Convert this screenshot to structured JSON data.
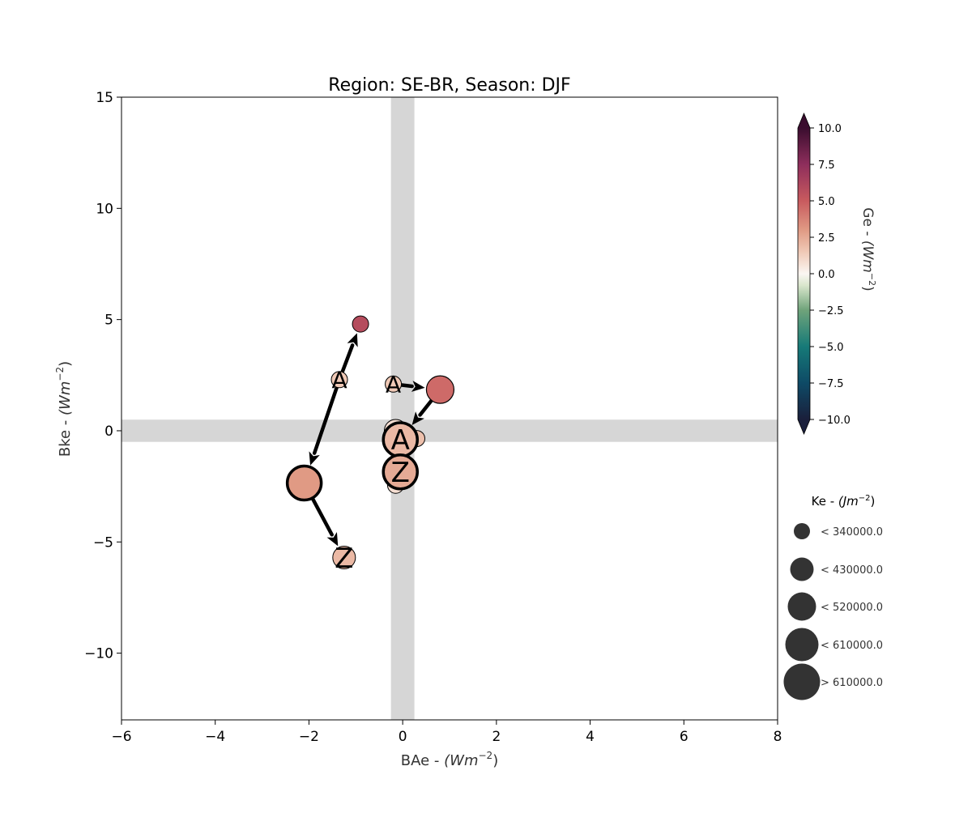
{
  "chart_data": {
    "type": "scatter",
    "title": "Region: SE-BR, Season: DJF",
    "xlabel": "BAe - ",
    "xlabel_unit": "(Wm",
    "xlabel_exp": "−2",
    "xlabel_close": ")",
    "ylabel": "Bke - ",
    "ylabel_unit": "(Wm",
    "ylabel_exp": "−2",
    "ylabel_close": ")",
    "xlim": [
      -6,
      8
    ],
    "ylim": [
      -13,
      15
    ],
    "xticks": [
      -6,
      -4,
      -2,
      0,
      2,
      4,
      6,
      8
    ],
    "xtick_labels": [
      "−6",
      "−4",
      "−2",
      "0",
      "2",
      "4",
      "6",
      "8"
    ],
    "yticks": [
      -10,
      -5,
      0,
      5,
      10,
      15
    ],
    "ytick_labels": [
      "−10",
      "−5",
      "0",
      "5",
      "10",
      "15"
    ],
    "grid": false,
    "reference_bands": {
      "x_center": 0,
      "y_center": 0,
      "x_half_width": 0.25,
      "y_half_width": 0.5,
      "color": "#d6d6d6"
    },
    "trajectories": [
      {
        "points": [
          {
            "x": -1.35,
            "y": 2.3,
            "ge": 1.5,
            "ke_class": 0,
            "label": "A"
          },
          {
            "x": -0.9,
            "y": 4.8,
            "ge": 5.8,
            "ke_class": 0,
            "label": ""
          },
          {
            "x": -2.1,
            "y": -2.35,
            "ge": 3.0,
            "ke_class": 3,
            "label": ""
          },
          {
            "x": -1.25,
            "y": -5.7,
            "ge": 2.0,
            "ke_class": 1,
            "label": "Z"
          }
        ],
        "arrows": [
          [
            0,
            1
          ],
          [
            0,
            2
          ],
          [
            2,
            3
          ]
        ]
      },
      {
        "points": [
          {
            "x": -0.2,
            "y": 2.1,
            "ge": 1.5,
            "ke_class": 0,
            "label": "A"
          },
          {
            "x": 0.8,
            "y": 1.85,
            "ge": 4.5,
            "ke_class": 2,
            "label": ""
          },
          {
            "x": 0.3,
            "y": -0.35,
            "ge": 1.8,
            "ke_class": 0,
            "label": ""
          },
          {
            "x": -0.15,
            "y": 0.0,
            "ge": 0.8,
            "ke_class": 1,
            "label": ""
          },
          {
            "x": -0.15,
            "y": -2.45,
            "ge": 0.8,
            "ke_class": 0,
            "label": ""
          },
          {
            "x": -0.05,
            "y": -0.4,
            "ge": 2.0,
            "ke_class": 3,
            "label": "A"
          },
          {
            "x": -0.05,
            "y": -1.85,
            "ge": 2.5,
            "ke_class": 3,
            "label": "Z"
          }
        ],
        "arrows": [
          [
            0,
            1
          ],
          [
            1,
            5
          ]
        ]
      }
    ],
    "colorbar": {
      "label": "Ge - ",
      "label_unit": "(Wm",
      "label_exp": "−2",
      "label_close": ")",
      "range": [
        -10,
        10
      ],
      "ticks": [
        10.0,
        7.5,
        5.0,
        2.5,
        0.0,
        -2.5,
        -5.0,
        -7.5,
        -10.0
      ],
      "tick_labels": [
        "10.0",
        "7.5",
        "5.0",
        "2.5",
        "0.0",
        "−2.5",
        "−5.0",
        "−7.5",
        "−10.0"
      ],
      "extend": "both",
      "stops": [
        {
          "v": -10,
          "color": "#1a1f3b"
        },
        {
          "v": -7.5,
          "color": "#0e4a66"
        },
        {
          "v": -5,
          "color": "#167a78"
        },
        {
          "v": -2.5,
          "color": "#6fa37a"
        },
        {
          "v": -0.8,
          "color": "#d9e6cc"
        },
        {
          "v": 0,
          "color": "#fbf6f2"
        },
        {
          "v": 1.5,
          "color": "#f0c9b6"
        },
        {
          "v": 3,
          "color": "#e09a84"
        },
        {
          "v": 5,
          "color": "#c85a5e"
        },
        {
          "v": 7.5,
          "color": "#8e2e5c"
        },
        {
          "v": 10,
          "color": "#3a0d2e"
        }
      ]
    },
    "size_legend": {
      "title": "Ke - ",
      "title_unit": "(Jm",
      "title_exp": "−2",
      "title_close": ")",
      "color": "#333333",
      "entries": [
        {
          "label": "< 340000.0"
        },
        {
          "label": "< 430000.0"
        },
        {
          "label": "< 520000.0"
        },
        {
          "label": "< 610000.0"
        },
        {
          "label": "> 610000.0"
        }
      ]
    }
  }
}
